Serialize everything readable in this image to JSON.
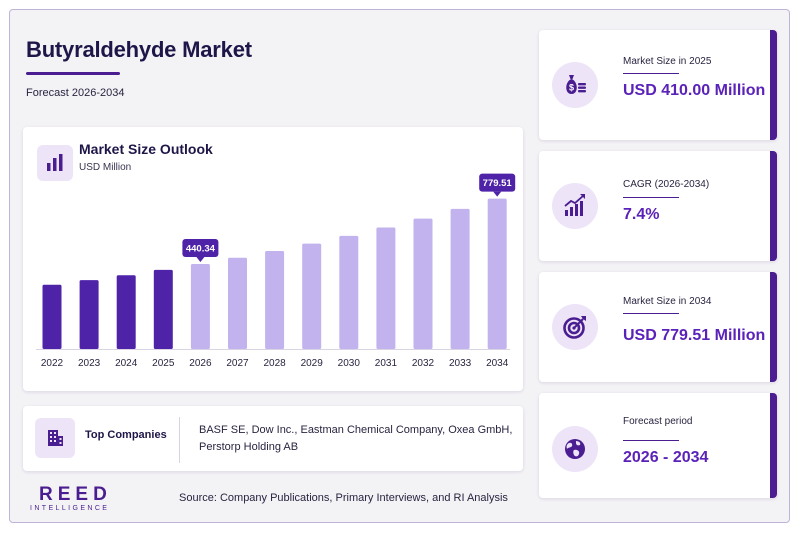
{
  "header": {
    "title": "Butyraldehyde Market",
    "subtitle": "Forecast 2026-2034"
  },
  "chart_panel": {
    "title": "Market Size Outlook",
    "unit": "USD Million",
    "icon": "bar-chart-icon"
  },
  "chart_data": {
    "type": "bar",
    "title": "Market Size Outlook",
    "ylabel": "USD Million",
    "categories": [
      "2022",
      "2023",
      "2024",
      "2025",
      "2026",
      "2027",
      "2028",
      "2029",
      "2030",
      "2031",
      "2032",
      "2033",
      "2034"
    ],
    "values": [
      333,
      357,
      382,
      410,
      440.34,
      473,
      508,
      546,
      586,
      630,
      676,
      726,
      779.51
    ],
    "historical_color": "#4f23a8",
    "forecast_color": "#c2b3ee",
    "forecast_start_index": 4,
    "callouts": [
      {
        "index": 4,
        "label": "440.34"
      },
      {
        "index": 12,
        "label": "779.51"
      }
    ],
    "ylim": [
      0,
      850
    ]
  },
  "companies": {
    "icon": "building-icon",
    "label": "Top Companies",
    "text": "BASF SE, Dow Inc., Eastman Chemical Company, Oxea GmbH, Perstorp Holding AB"
  },
  "stats": [
    {
      "label": "Market Size in 2025",
      "value": "USD 410.00 Million",
      "icon": "money-bag-icon"
    },
    {
      "label": "CAGR (2026-2034)",
      "value": "7.4%",
      "icon": "growth-chart-icon"
    },
    {
      "label": "Market Size in 2034",
      "value": "USD 779.51 Million",
      "icon": "target-icon"
    },
    {
      "label": "Forecast period",
      "value": "2026 - 2034",
      "icon": "globe-icon"
    }
  ],
  "footer": {
    "logo_main": "REED",
    "logo_sub": "INTELLIGENCE",
    "source": "Source: Company Publications, Primary Interviews, and RI Analysis"
  },
  "colors": {
    "primary": "#4a1e90",
    "accent_text": "#5a22b8",
    "icon_bg": "#ede4f8",
    "title_text": "#1e1648"
  }
}
